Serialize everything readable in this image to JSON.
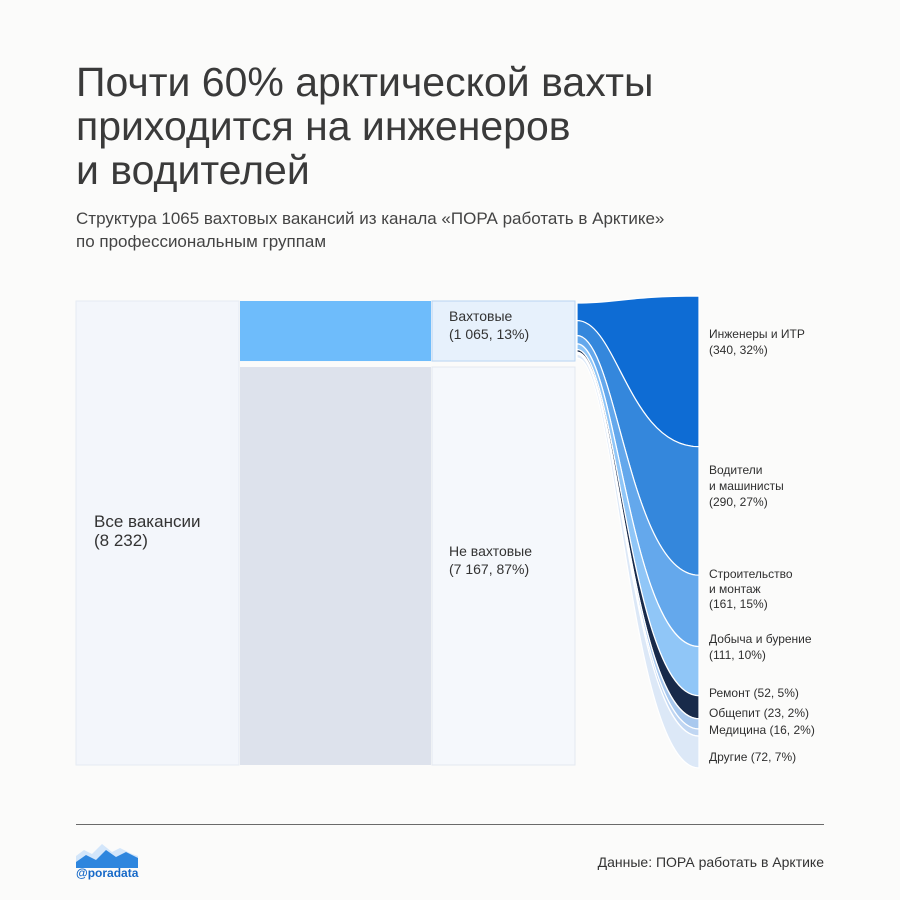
{
  "title_lines": [
    "Почти 60% арктической вахты",
    "приходится на инженеров",
    "и водителей"
  ],
  "subtitle_lines": [
    "Структура 1065 вахтовых вакансий из канала «ПОРА работать в Арктике»",
    "по профессиональным группам"
  ],
  "footer": {
    "brand": "@poradata",
    "source": "Данные: ПОРА работать в Арктике"
  },
  "colors": {
    "total": "#f3f6fb",
    "non_shift_band": "#dde2ec",
    "shift_band": "#6ebcfb",
    "non_shift_node": "#f5f8fc",
    "shift_node": "#e7f1fc"
  },
  "chart_data": {
    "type": "sankey",
    "total": {
      "label_lines": [
        "Все вакансии",
        "(8 232)"
      ],
      "value": 8232
    },
    "split": [
      {
        "key": "shift",
        "label_lines": [
          "Вахтовые",
          "(1 065, 13%)"
        ],
        "value": 1065,
        "percent": 13
      },
      {
        "key": "non_shift",
        "label_lines": [
          "Не вахтовые",
          "(7 167, 87%)"
        ],
        "value": 7167,
        "percent": 87
      }
    ],
    "groups": [
      {
        "label_lines": [
          "Инженеры и ИТР",
          "(340, 32%)"
        ],
        "value": 340,
        "percent": 32,
        "color": "#0e6cd4"
      },
      {
        "label_lines": [
          "Водители",
          "и машинисты",
          "(290, 27%)"
        ],
        "value": 290,
        "percent": 27,
        "color": "#3487dc"
      },
      {
        "label_lines": [
          "Строительство",
          "и монтаж",
          "(161, 15%)"
        ],
        "value": 161,
        "percent": 15,
        "color": "#64a8ec"
      },
      {
        "label_lines": [
          "Добыча и бурение",
          "(111, 10%)"
        ],
        "value": 111,
        "percent": 10,
        "color": "#90c6f7"
      },
      {
        "label_lines": [
          "Ремонт (52, 5%)"
        ],
        "value": 52,
        "percent": 5,
        "color": "#182a4a"
      },
      {
        "label_lines": [
          "Общепит (23, 2%)"
        ],
        "value": 23,
        "percent": 2,
        "color": "#a8c8ee"
      },
      {
        "label_lines": [
          "Медицина (16, 2%)"
        ],
        "value": 16,
        "percent": 2,
        "color": "#c0d6f2"
      },
      {
        "label_lines": [
          "Другие (72, 7%)"
        ],
        "value": 72,
        "percent": 7,
        "color": "#dce8f7"
      }
    ]
  }
}
